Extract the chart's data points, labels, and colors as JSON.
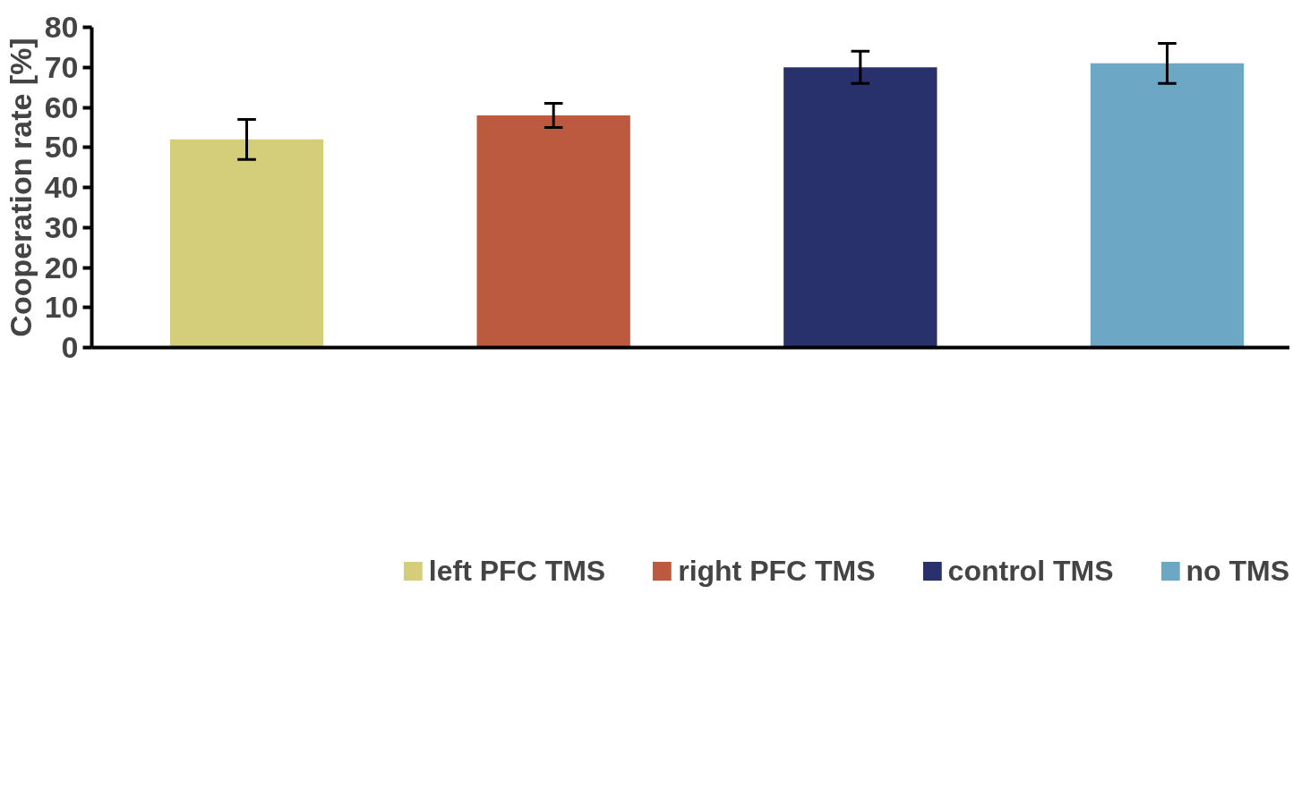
{
  "chart_data": {
    "type": "bar",
    "ylabel": "Cooperation rate [%]",
    "categories": [
      null,
      null,
      null,
      null
    ],
    "series": [
      {
        "name": "left PFC TMS",
        "color": "#d4ce7a",
        "values": [
          52,
          null,
          null,
          null
        ],
        "errors": [
          [
            47,
            57
          ],
          null,
          null,
          null
        ]
      },
      {
        "name": "right PFC TMS",
        "color": "#bc5a40",
        "values": [
          null,
          58,
          null,
          null
        ],
        "errors": [
          null,
          [
            55,
            61
          ],
          null,
          null
        ]
      },
      {
        "name": "control TMS",
        "color": "#28316c",
        "values": [
          null,
          null,
          70,
          null
        ],
        "errors": [
          null,
          null,
          [
            66,
            74
          ],
          null
        ]
      },
      {
        "name": "no TMS",
        "color": "#6ca7c6",
        "values": [
          null,
          null,
          null,
          71
        ],
        "errors": [
          null,
          null,
          null,
          [
            66,
            76
          ]
        ]
      }
    ],
    "ylim": [
      0,
      80
    ],
    "yticks": [
      0,
      10,
      20,
      30,
      40,
      50,
      60,
      70,
      80
    ],
    "grid": false,
    "legend": "bottom"
  }
}
